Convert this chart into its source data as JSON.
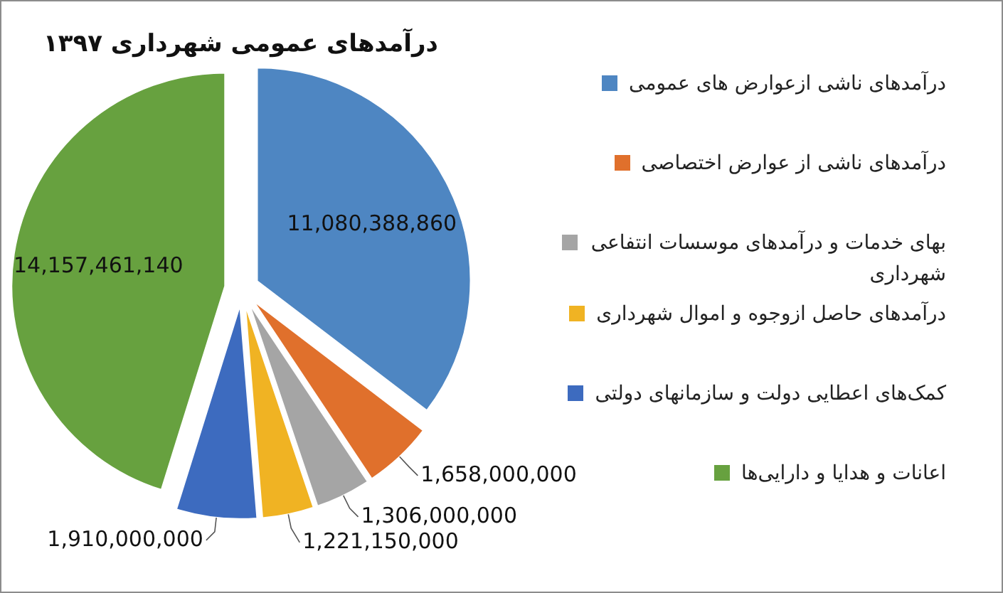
{
  "chart_data": {
    "type": "pie",
    "title": "درآمدهای عمومی شهرداری ۱۳۹۷",
    "categories": [
      "درآمدهای ناشی ازعوارض های عمومی",
      "درآمدهای ناشی از عوارض اختصاصی",
      "بهای خدمات و درآمدهای موسسات انتفاعی شهرداری",
      "درآمدهای حاصل ازوجوه و اموال شهرداری",
      "کمک‌های اعطایی دولت و سازمانهای دولتی",
      "اعانات و هدایا و دارایی‌ها"
    ],
    "values": [
      11080388860,
      1658000000,
      1306000000,
      1221150000,
      1910000000,
      14157461140
    ],
    "colors": [
      "#4e86c2",
      "#e0702c",
      "#a5a5a5",
      "#f0b323",
      "#3d6bbf",
      "#67a13f"
    ],
    "value_labels": [
      "11,080,388,860",
      "1,658,000,000",
      "1,306,000,000",
      "1,221,150,000",
      "1,910,000,000",
      "14,157,461,140"
    ],
    "legend": "right"
  }
}
